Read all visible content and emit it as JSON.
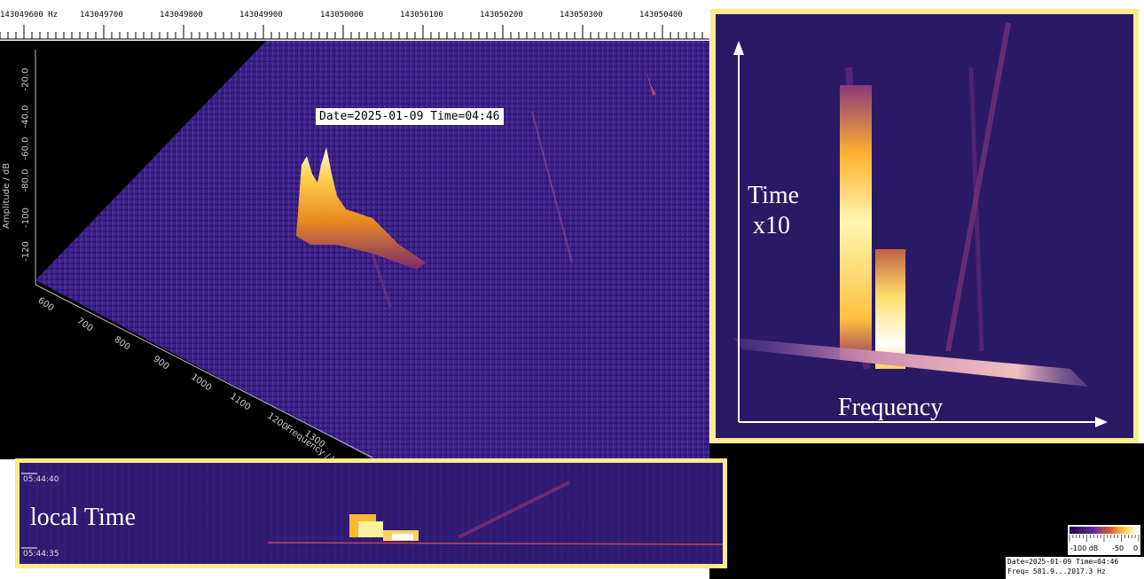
{
  "ruler": {
    "unit": "Hz",
    "labels": [
      "143049600 Hz",
      "143049700",
      "143049800",
      "143049900",
      "143050000",
      "143050100",
      "143050200",
      "143050300",
      "143050400"
    ]
  },
  "plot3d": {
    "date_label": "Date=2025-01-09 Time=04:46",
    "amplitude_label": "Amplitude / dB",
    "amplitude_ticks": [
      "-20.0",
      "-40.0",
      "-60.0",
      "-80.0",
      "-100",
      "-120"
    ],
    "freq_label": "Frequency / Hz",
    "freq_ticks": [
      "600",
      "700",
      "800",
      "900",
      "1000",
      "1100",
      "1200",
      "1300"
    ]
  },
  "inset": {
    "time_label_line1": "Time",
    "time_label_line2": "x10",
    "freq_label": "Frequency"
  },
  "waterfall": {
    "time_top": "05:44:40",
    "time_bottom": "05:44:35",
    "local_time_label": "local Time"
  },
  "colorbar": {
    "tick_low": "-100 dB",
    "tick_mid": "-50",
    "tick_high": "0"
  },
  "footer": {
    "line1": "Date=2025-01-09 Time=04:46",
    "line2": "Freq= 581.9...2017.3 Hz"
  },
  "colors": {
    "background_noise": "#2b1a6e",
    "peak": "#fff7b0",
    "inset_border": "#f8ec8c"
  },
  "chart_data": {
    "type": "heatmap",
    "title": "Date=2025-01-09 Time=04:46",
    "xlabel": "Frequency",
    "ylabel": "Amplitude / dB",
    "freq_range_hz": [
      581.9,
      2017.3
    ],
    "amplitude_range_db": [
      -130,
      -20
    ],
    "colorbar_range_db": [
      -100,
      0
    ]
  }
}
